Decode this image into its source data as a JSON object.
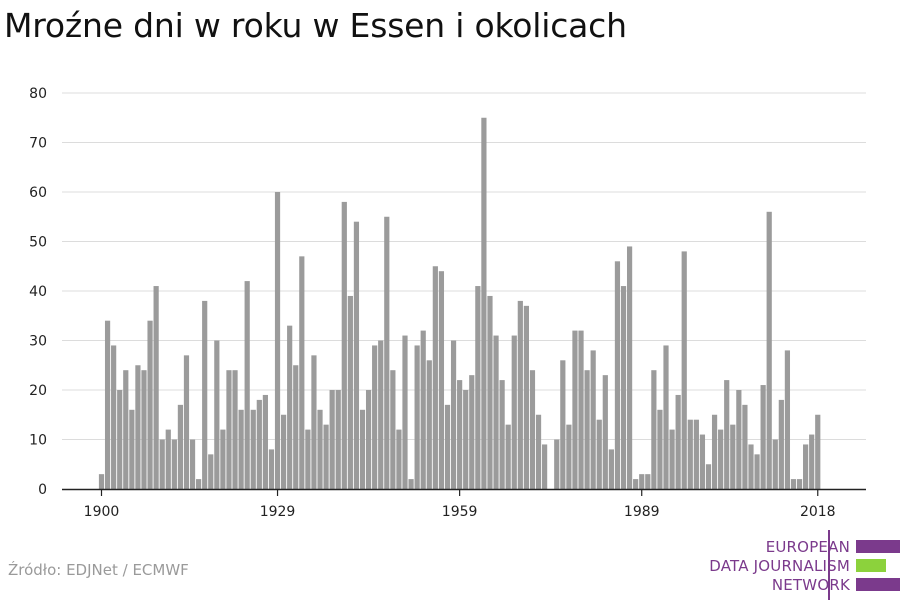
{
  "title": "Mroźne dni w roku w Essen i okolicach",
  "source": "Źródło: EDJNet / ECMWF",
  "logo": {
    "lines": [
      "EUROPEAN",
      "DATA JOURNALISM",
      "NETWORK"
    ],
    "colors": {
      "purple": "#7b3a8c",
      "green": "#8cd23c"
    }
  },
  "colors": {
    "bar": "#9b9b9b",
    "grid": "#dcdcdc",
    "axis": "#222222"
  },
  "chart_data": {
    "type": "bar",
    "title": "Mroźne dni w roku w Essen i okolicach",
    "xlabel": "",
    "ylabel": "",
    "ylim": [
      0,
      80
    ],
    "yticks": [
      0,
      10,
      20,
      30,
      40,
      50,
      60,
      70,
      80
    ],
    "xticks": [
      1900,
      1929,
      1959,
      1989,
      2018
    ],
    "grid": true,
    "categories": [
      1900,
      1901,
      1902,
      1903,
      1904,
      1905,
      1906,
      1907,
      1908,
      1909,
      1910,
      1911,
      1912,
      1913,
      1914,
      1915,
      1916,
      1917,
      1918,
      1919,
      1920,
      1921,
      1922,
      1923,
      1924,
      1925,
      1926,
      1927,
      1928,
      1929,
      1930,
      1931,
      1932,
      1933,
      1934,
      1935,
      1936,
      1937,
      1938,
      1939,
      1940,
      1941,
      1942,
      1943,
      1944,
      1945,
      1946,
      1947,
      1948,
      1949,
      1950,
      1951,
      1952,
      1953,
      1954,
      1955,
      1956,
      1957,
      1958,
      1959,
      1960,
      1961,
      1962,
      1963,
      1964,
      1965,
      1966,
      1967,
      1968,
      1969,
      1970,
      1971,
      1972,
      1973,
      1974,
      1975,
      1976,
      1977,
      1978,
      1979,
      1980,
      1981,
      1982,
      1983,
      1984,
      1985,
      1986,
      1987,
      1988,
      1989,
      1990,
      1991,
      1992,
      1993,
      1994,
      1995,
      1996,
      1997,
      1998,
      1999,
      2000,
      2001,
      2002,
      2003,
      2004,
      2005,
      2006,
      2007,
      2008,
      2009,
      2010,
      2011,
      2012,
      2013,
      2014,
      2015,
      2016,
      2017,
      2018
    ],
    "values": [
      3,
      34,
      29,
      20,
      24,
      16,
      25,
      24,
      34,
      41,
      10,
      12,
      10,
      17,
      27,
      10,
      2,
      38,
      7,
      30,
      12,
      24,
      24,
      16,
      42,
      16,
      18,
      19,
      8,
      60,
      15,
      33,
      25,
      47,
      12,
      27,
      16,
      13,
      20,
      20,
      58,
      39,
      54,
      16,
      20,
      29,
      30,
      55,
      24,
      12,
      31,
      2,
      29,
      32,
      26,
      45,
      44,
      17,
      30,
      22,
      20,
      23,
      41,
      75,
      39,
      31,
      22,
      13,
      31,
      38,
      37,
      24,
      15,
      9,
      0,
      10,
      26,
      13,
      32,
      32,
      24,
      28,
      14,
      23,
      8,
      46,
      41,
      49,
      2,
      3,
      3,
      24,
      16,
      29,
      12,
      19,
      48,
      14,
      14,
      11,
      5,
      15,
      12,
      22,
      13,
      20,
      17,
      9,
      7,
      21,
      56,
      10,
      18,
      28,
      2,
      2,
      9,
      11,
      15
    ]
  }
}
